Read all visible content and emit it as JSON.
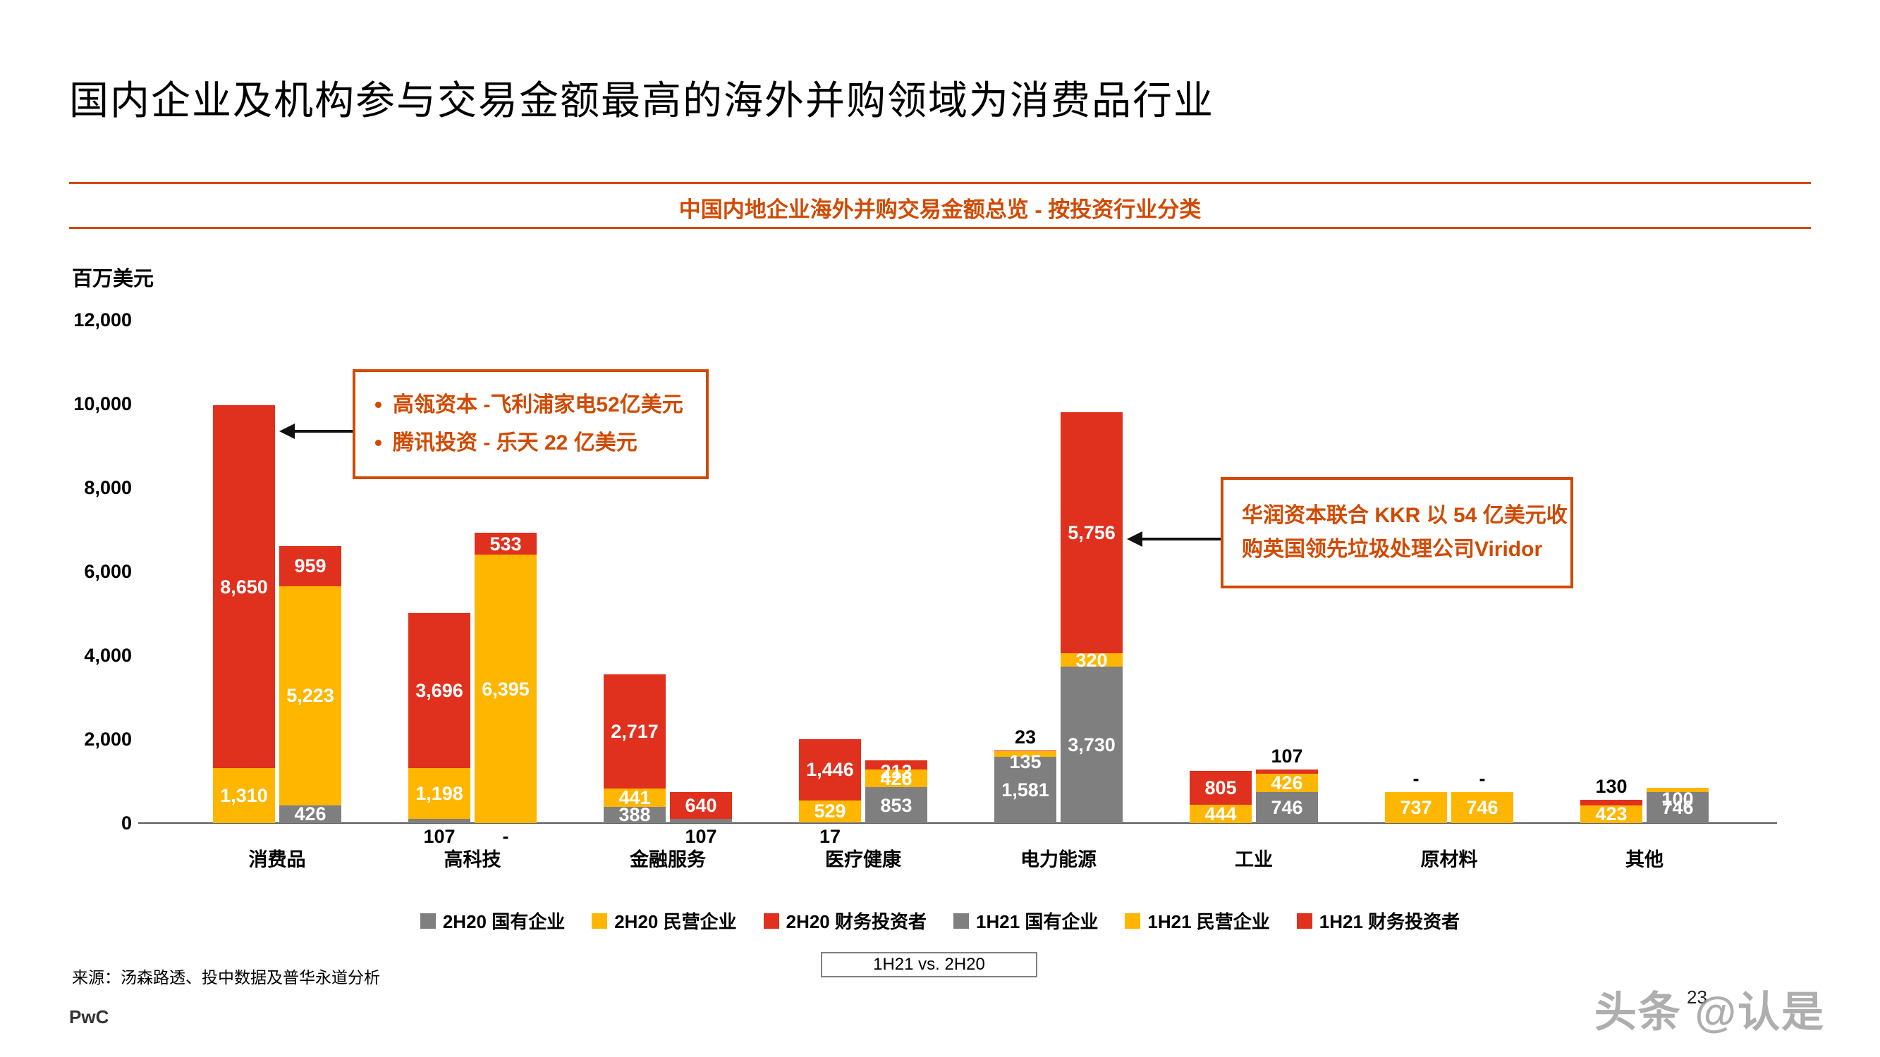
{
  "header": {
    "title": "国内企业及机构参与交易金额最高的海外并购领域为消费品行业",
    "subtitle": "中国内地企业海外并购交易金额总览 - 按投资行业分类"
  },
  "colors": {
    "soe": "#7f7f7f",
    "poe": "#ffb600",
    "fi": "#e0301e",
    "accent": "#d04a02",
    "axis": "#595959"
  },
  "annotations": {
    "consumer": {
      "lines": [
        "高瓴资本 -飞利浦家电52亿美元",
        "腾讯投资 - 乐天 22 亿美元"
      ]
    },
    "power": {
      "lines": [
        "华润资本联合 KKR 以 54 亿美元收",
        "购英国领先垃圾处理公司Viridor"
      ]
    }
  },
  "footer": {
    "comparison": "1H21 vs. 2H20",
    "source": "来源：汤森路透、投中数据及普华永道分析",
    "logo": "PwC",
    "page_number": "23",
    "watermark": "头条 @认是"
  },
  "chart_data": {
    "type": "bar",
    "stacked": true,
    "title": "中国内地企业海外并购交易金额总览 - 按投资行业分类",
    "xlabel": "",
    "ylabel": "百万美元",
    "ylim": [
      0,
      12000
    ],
    "yticks": [
      "0",
      "2,000",
      "4,000",
      "6,000",
      "8,000",
      "10,000",
      "12,000"
    ],
    "grid": false,
    "legend_position": "bottom",
    "categories": [
      "消费品",
      "高科技",
      "金融服务",
      "医疗健康",
      "电力能源",
      "工业",
      "原材料",
      "其他"
    ],
    "legend": [
      {
        "label": "2H20 国有企业",
        "color": "#7f7f7f"
      },
      {
        "label": "2H20 民营企业",
        "color": "#ffb600"
      },
      {
        "label": "2H20 财务投资者",
        "color": "#e0301e"
      },
      {
        "label": "1H21 国有企业",
        "color": "#7f7f7f"
      },
      {
        "label": "1H21 民营企业",
        "color": "#ffb600"
      },
      {
        "label": "1H21 财务投资者",
        "color": "#e0301e"
      }
    ],
    "groups": [
      {
        "category": "消费品",
        "bars": [
          {
            "period": "2H20",
            "segments": [
              {
                "name": "国有企业",
                "value": 0,
                "label": null,
                "pos": null
              },
              {
                "name": "民营企业",
                "value": 1310,
                "label": "1,310",
                "pos": "inside"
              },
              {
                "name": "财务投资者",
                "value": 8650,
                "label": "8,650",
                "pos": "inside"
              }
            ]
          },
          {
            "period": "1H21",
            "segments": [
              {
                "name": "国有企业",
                "value": 426,
                "label": "426",
                "pos": "inside"
              },
              {
                "name": "民营企业",
                "value": 5223,
                "label": "5,223",
                "pos": "inside"
              },
              {
                "name": "财务投资者",
                "value": 959,
                "label": "959",
                "pos": "inside"
              }
            ]
          }
        ]
      },
      {
        "category": "高科技",
        "bars": [
          {
            "period": "2H20",
            "segments": [
              {
                "name": "国有企业",
                "value": 107,
                "label": "107",
                "pos": "below"
              },
              {
                "name": "民营企业",
                "value": 1198,
                "label": "1,198",
                "pos": "inside"
              },
              {
                "name": "财务投资者",
                "value": 3696,
                "label": "3,696",
                "pos": "inside"
              }
            ]
          },
          {
            "period": "1H21",
            "segments": [
              {
                "name": "国有企业",
                "value": 0,
                "label": "-",
                "pos": "below"
              },
              {
                "name": "民营企业",
                "value": 6395,
                "label": "6,395",
                "pos": "inside"
              },
              {
                "name": "财务投资者",
                "value": 533,
                "label": "533",
                "pos": "inside"
              }
            ]
          }
        ]
      },
      {
        "category": "金融服务",
        "bars": [
          {
            "period": "2H20",
            "segments": [
              {
                "name": "国有企业",
                "value": 388,
                "label": "388",
                "pos": "inside"
              },
              {
                "name": "民营企业",
                "value": 441,
                "label": "441",
                "pos": "inside"
              },
              {
                "name": "财务投资者",
                "value": 2717,
                "label": "2,717",
                "pos": "inside"
              }
            ]
          },
          {
            "period": "1H21",
            "segments": [
              {
                "name": "国有企业",
                "value": 107,
                "label": "107",
                "pos": "below"
              },
              {
                "name": "民营企业",
                "value": 0,
                "label": null,
                "pos": null
              },
              {
                "name": "财务投资者",
                "value": 640,
                "label": "640",
                "pos": "inside"
              }
            ]
          }
        ]
      },
      {
        "category": "医疗健康",
        "bars": [
          {
            "period": "2H20",
            "segments": [
              {
                "name": "国有企业",
                "value": 17,
                "label": "17",
                "pos": "below"
              },
              {
                "name": "民营企业",
                "value": 529,
                "label": "529",
                "pos": "inside"
              },
              {
                "name": "财务投资者",
                "value": 1446,
                "label": "1,446",
                "pos": "inside"
              }
            ]
          },
          {
            "period": "1H21",
            "segments": [
              {
                "name": "国有企业",
                "value": 853,
                "label": "853",
                "pos": "inside"
              },
              {
                "name": "民营企业",
                "value": 426,
                "label": "426",
                "pos": "inside"
              },
              {
                "name": "财务投资者",
                "value": 213,
                "label": "213",
                "pos": "inside"
              }
            ]
          }
        ]
      },
      {
        "category": "电力能源",
        "bars": [
          {
            "period": "2H20",
            "segments": [
              {
                "name": "国有企业",
                "value": 1581,
                "label": "1,581",
                "pos": "inside"
              },
              {
                "name": "民营企业",
                "value": 135,
                "label": "135",
                "pos": "inside"
              },
              {
                "name": "财务投资者",
                "value": 23,
                "label": "23",
                "pos": "above"
              }
            ]
          },
          {
            "period": "1H21",
            "segments": [
              {
                "name": "国有企业",
                "value": 3730,
                "label": "3,730",
                "pos": "inside"
              },
              {
                "name": "民营企业",
                "value": 320,
                "label": "320",
                "pos": "inside"
              },
              {
                "name": "财务投资者",
                "value": 5756,
                "label": "5,756",
                "pos": "inside"
              }
            ]
          }
        ]
      },
      {
        "category": "工业",
        "bars": [
          {
            "period": "2H20",
            "segments": [
              {
                "name": "国有企业",
                "value": 0,
                "label": null,
                "pos": null
              },
              {
                "name": "民营企业",
                "value": 444,
                "label": "444",
                "pos": "inside"
              },
              {
                "name": "财务投资者",
                "value": 805,
                "label": "805",
                "pos": "inside"
              }
            ]
          },
          {
            "period": "1H21",
            "segments": [
              {
                "name": "国有企业",
                "value": 746,
                "label": "746",
                "pos": "inside"
              },
              {
                "name": "民营企业",
                "value": 426,
                "label": "426",
                "pos": "inside"
              },
              {
                "name": "财务投资者",
                "value": 107,
                "label": "107",
                "pos": "above"
              }
            ]
          }
        ]
      },
      {
        "category": "原材料",
        "bars": [
          {
            "period": "2H20",
            "segments": [
              {
                "name": "国有企业",
                "value": 0,
                "label": null,
                "pos": null
              },
              {
                "name": "民营企业",
                "value": 737,
                "label": "737",
                "pos": "inside"
              },
              {
                "name": "财务投资者",
                "value": 0,
                "label": "-",
                "pos": "above"
              }
            ]
          },
          {
            "period": "1H21",
            "segments": [
              {
                "name": "国有企业",
                "value": 0,
                "label": null,
                "pos": null
              },
              {
                "name": "民营企业",
                "value": 746,
                "label": "746",
                "pos": "inside"
              },
              {
                "name": "财务投资者",
                "value": 0,
                "label": "-",
                "pos": "above"
              }
            ]
          }
        ]
      },
      {
        "category": "其他",
        "bars": [
          {
            "period": "2H20",
            "segments": [
              {
                "name": "国有企业",
                "value": 0,
                "label": null,
                "pos": null
              },
              {
                "name": "民营企业",
                "value": 423,
                "label": "423",
                "pos": "inside"
              },
              {
                "name": "财务投资者",
                "value": 130,
                "label": "130",
                "pos": "above"
              }
            ]
          },
          {
            "period": "1H21",
            "segments": [
              {
                "name": "国有企业",
                "value": 746,
                "label": "746",
                "pos": "inside"
              },
              {
                "name": "民营企业",
                "value": 100,
                "label": "100",
                "pos": "inside"
              },
              {
                "name": "财务投资者",
                "value": 0,
                "label": null,
                "pos": null
              }
            ]
          }
        ]
      }
    ]
  }
}
